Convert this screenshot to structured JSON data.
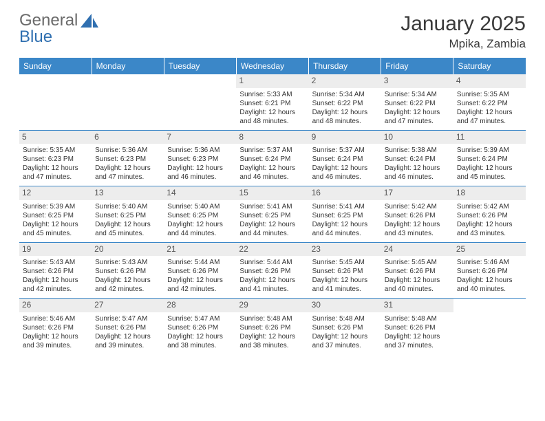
{
  "logo": {
    "word1": "General",
    "word2": "Blue"
  },
  "title": "January 2025",
  "location": "Mpika, Zambia",
  "colors": {
    "header_bg": "#3b87c8",
    "header_text": "#ffffff",
    "daynum_bg": "#ededed",
    "text": "#333333",
    "logo_gray": "#6a6a6a",
    "logo_blue": "#2f6fb0",
    "rule": "#3b87c8"
  },
  "day_headers": [
    "Sunday",
    "Monday",
    "Tuesday",
    "Wednesday",
    "Thursday",
    "Friday",
    "Saturday"
  ],
  "weeks": [
    [
      null,
      null,
      null,
      {
        "n": "1",
        "sr": "5:33 AM",
        "ss": "6:21 PM",
        "dl": "12 hours and 48 minutes."
      },
      {
        "n": "2",
        "sr": "5:34 AM",
        "ss": "6:22 PM",
        "dl": "12 hours and 48 minutes."
      },
      {
        "n": "3",
        "sr": "5:34 AM",
        "ss": "6:22 PM",
        "dl": "12 hours and 47 minutes."
      },
      {
        "n": "4",
        "sr": "5:35 AM",
        "ss": "6:22 PM",
        "dl": "12 hours and 47 minutes."
      }
    ],
    [
      {
        "n": "5",
        "sr": "5:35 AM",
        "ss": "6:23 PM",
        "dl": "12 hours and 47 minutes."
      },
      {
        "n": "6",
        "sr": "5:36 AM",
        "ss": "6:23 PM",
        "dl": "12 hours and 47 minutes."
      },
      {
        "n": "7",
        "sr": "5:36 AM",
        "ss": "6:23 PM",
        "dl": "12 hours and 46 minutes."
      },
      {
        "n": "8",
        "sr": "5:37 AM",
        "ss": "6:24 PM",
        "dl": "12 hours and 46 minutes."
      },
      {
        "n": "9",
        "sr": "5:37 AM",
        "ss": "6:24 PM",
        "dl": "12 hours and 46 minutes."
      },
      {
        "n": "10",
        "sr": "5:38 AM",
        "ss": "6:24 PM",
        "dl": "12 hours and 46 minutes."
      },
      {
        "n": "11",
        "sr": "5:39 AM",
        "ss": "6:24 PM",
        "dl": "12 hours and 45 minutes."
      }
    ],
    [
      {
        "n": "12",
        "sr": "5:39 AM",
        "ss": "6:25 PM",
        "dl": "12 hours and 45 minutes."
      },
      {
        "n": "13",
        "sr": "5:40 AM",
        "ss": "6:25 PM",
        "dl": "12 hours and 45 minutes."
      },
      {
        "n": "14",
        "sr": "5:40 AM",
        "ss": "6:25 PM",
        "dl": "12 hours and 44 minutes."
      },
      {
        "n": "15",
        "sr": "5:41 AM",
        "ss": "6:25 PM",
        "dl": "12 hours and 44 minutes."
      },
      {
        "n": "16",
        "sr": "5:41 AM",
        "ss": "6:25 PM",
        "dl": "12 hours and 44 minutes."
      },
      {
        "n": "17",
        "sr": "5:42 AM",
        "ss": "6:26 PM",
        "dl": "12 hours and 43 minutes."
      },
      {
        "n": "18",
        "sr": "5:42 AM",
        "ss": "6:26 PM",
        "dl": "12 hours and 43 minutes."
      }
    ],
    [
      {
        "n": "19",
        "sr": "5:43 AM",
        "ss": "6:26 PM",
        "dl": "12 hours and 42 minutes."
      },
      {
        "n": "20",
        "sr": "5:43 AM",
        "ss": "6:26 PM",
        "dl": "12 hours and 42 minutes."
      },
      {
        "n": "21",
        "sr": "5:44 AM",
        "ss": "6:26 PM",
        "dl": "12 hours and 42 minutes."
      },
      {
        "n": "22",
        "sr": "5:44 AM",
        "ss": "6:26 PM",
        "dl": "12 hours and 41 minutes."
      },
      {
        "n": "23",
        "sr": "5:45 AM",
        "ss": "6:26 PM",
        "dl": "12 hours and 41 minutes."
      },
      {
        "n": "24",
        "sr": "5:45 AM",
        "ss": "6:26 PM",
        "dl": "12 hours and 40 minutes."
      },
      {
        "n": "25",
        "sr": "5:46 AM",
        "ss": "6:26 PM",
        "dl": "12 hours and 40 minutes."
      }
    ],
    [
      {
        "n": "26",
        "sr": "5:46 AM",
        "ss": "6:26 PM",
        "dl": "12 hours and 39 minutes."
      },
      {
        "n": "27",
        "sr": "5:47 AM",
        "ss": "6:26 PM",
        "dl": "12 hours and 39 minutes."
      },
      {
        "n": "28",
        "sr": "5:47 AM",
        "ss": "6:26 PM",
        "dl": "12 hours and 38 minutes."
      },
      {
        "n": "29",
        "sr": "5:48 AM",
        "ss": "6:26 PM",
        "dl": "12 hours and 38 minutes."
      },
      {
        "n": "30",
        "sr": "5:48 AM",
        "ss": "6:26 PM",
        "dl": "12 hours and 37 minutes."
      },
      {
        "n": "31",
        "sr": "5:48 AM",
        "ss": "6:26 PM",
        "dl": "12 hours and 37 minutes."
      },
      null
    ]
  ],
  "labels": {
    "sunrise": "Sunrise:",
    "sunset": "Sunset:",
    "daylight": "Daylight:"
  }
}
